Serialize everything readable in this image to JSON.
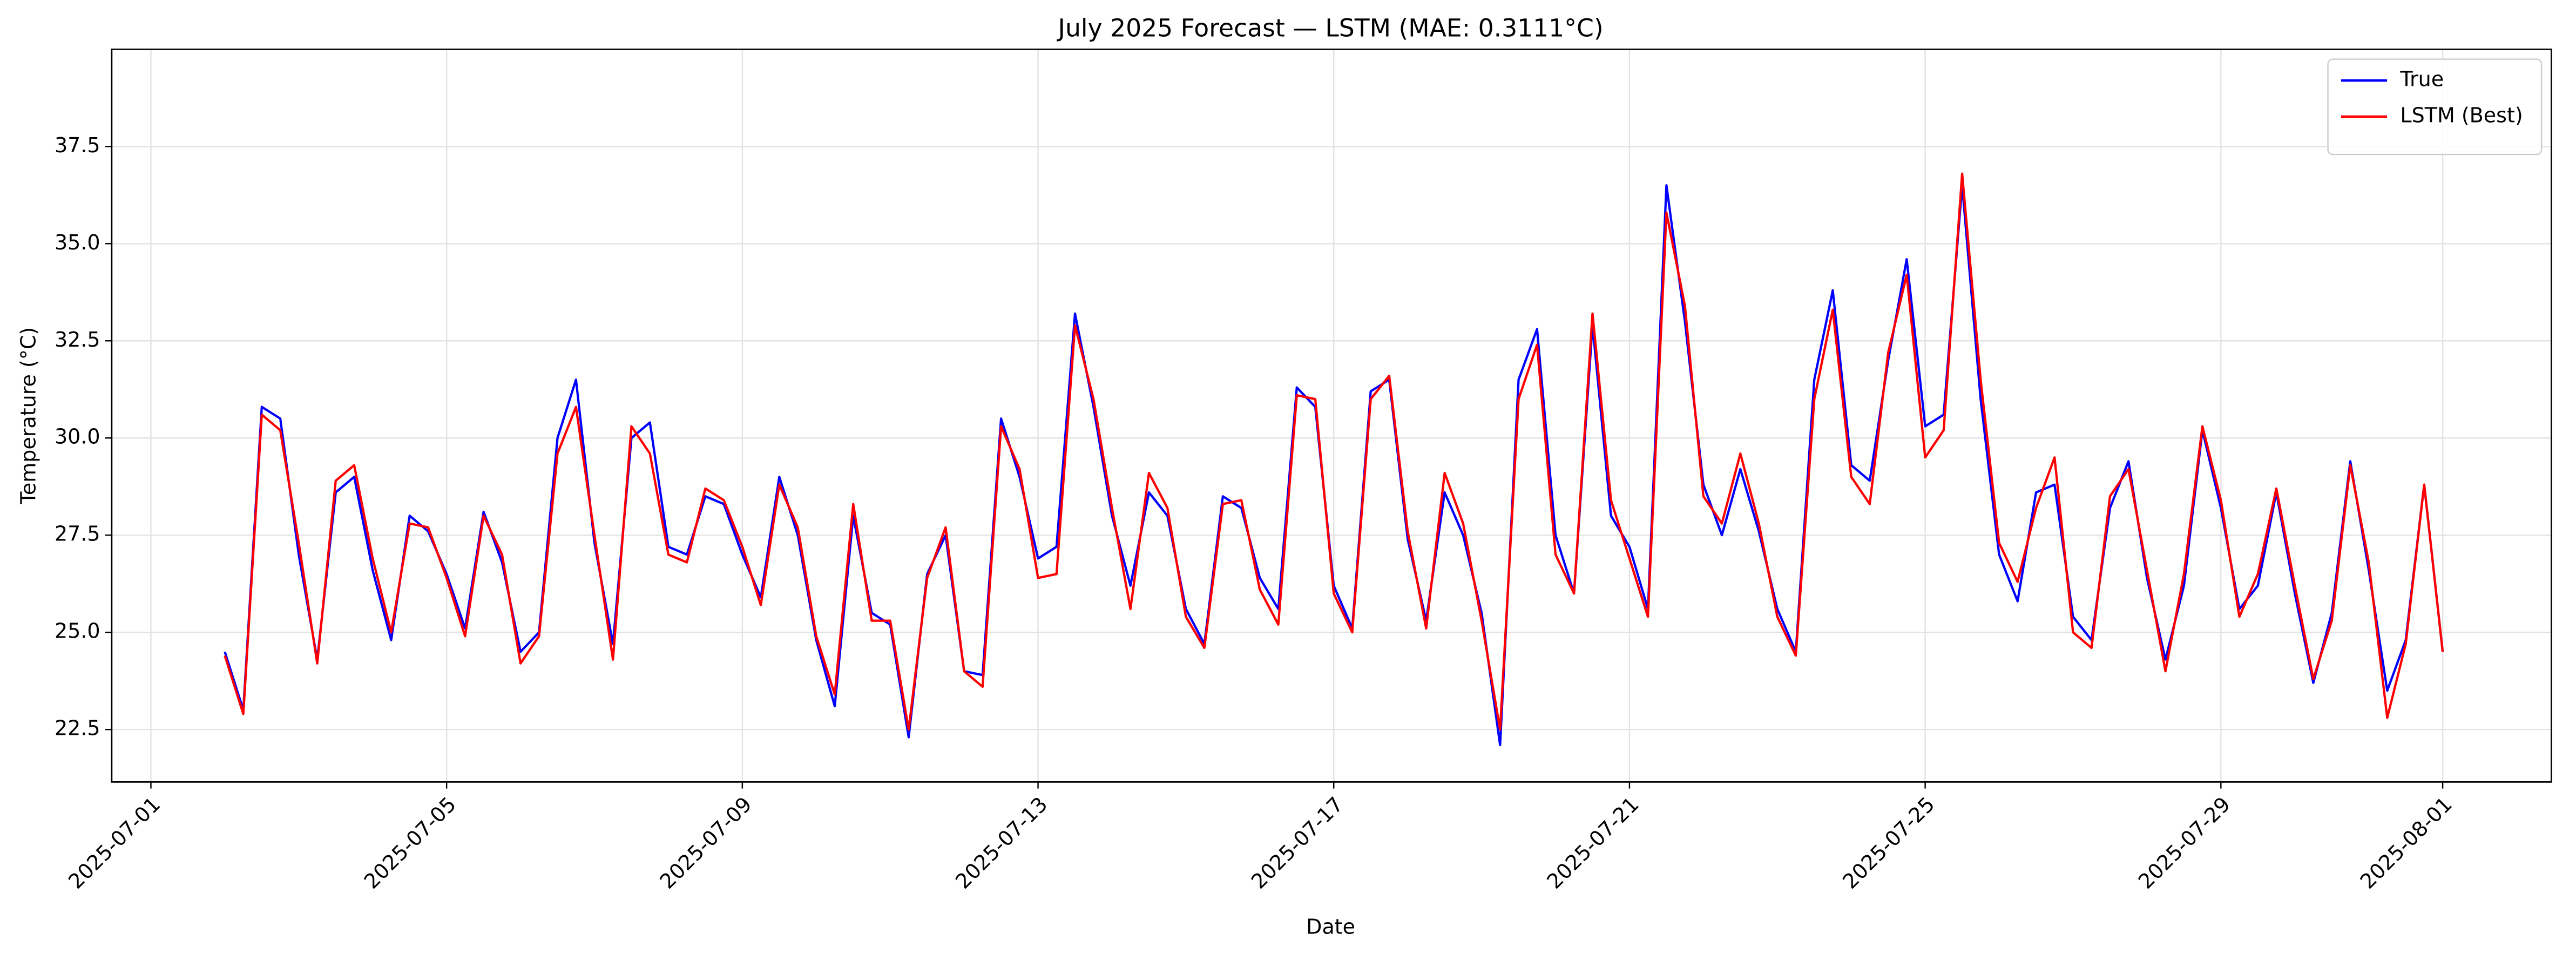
{
  "chart_data": {
    "type": "line",
    "title": "July 2025 Forecast — LSTM (MAE: 0.3111°C)",
    "x_label": "Date",
    "y_label": "Temperature (°C)",
    "x": [
      2,
      2.25,
      2.5,
      2.75,
      3,
      3.25,
      3.5,
      3.75,
      4,
      4.25,
      4.5,
      4.75,
      5,
      5.25,
      5.5,
      5.75,
      6,
      6.25,
      6.5,
      6.75,
      7,
      7.25,
      7.5,
      7.75,
      8,
      8.25,
      8.5,
      8.75,
      9,
      9.25,
      9.5,
      9.75,
      10,
      10.25,
      10.5,
      10.75,
      11,
      11.25,
      11.5,
      11.75,
      12,
      12.25,
      12.5,
      12.75,
      13,
      13.25,
      13.5,
      13.75,
      14,
      14.25,
      14.5,
      14.75,
      15,
      15.25,
      15.5,
      15.75,
      16,
      16.25,
      16.5,
      16.75,
      17,
      17.25,
      17.5,
      17.75,
      18,
      18.25,
      18.5,
      18.75,
      19,
      19.25,
      19.5,
      19.75,
      20,
      20.25,
      20.5,
      20.75,
      21,
      21.25,
      21.5,
      21.75,
      22,
      22.25,
      22.5,
      22.75,
      23,
      23.25,
      23.5,
      23.75,
      24,
      24.25,
      24.5,
      24.75,
      25,
      25.25,
      25.5,
      25.75,
      26,
      26.25,
      26.5,
      26.75,
      27,
      27.25,
      27.5,
      27.75,
      28,
      28.25,
      28.5,
      28.75,
      29,
      29.25,
      29.5,
      29.75,
      30,
      30.25,
      30.5,
      30.75,
      31,
      31.25,
      31.5,
      31.75,
      32
    ],
    "series": [
      {
        "name": "True",
        "color": "#0000ff",
        "values": [
          24.5,
          23.0,
          30.8,
          30.5,
          27.0,
          24.3,
          28.6,
          29.0,
          26.6,
          24.8,
          28.0,
          27.6,
          26.5,
          25.1,
          28.1,
          26.8,
          24.5,
          25.0,
          30.0,
          31.5,
          27.3,
          24.7,
          30.0,
          30.4,
          27.2,
          27.0,
          28.5,
          28.3,
          27.0,
          25.9,
          29.0,
          27.5,
          24.8,
          23.1,
          28.0,
          25.5,
          25.2,
          22.3,
          26.5,
          27.5,
          24.0,
          23.9,
          30.5,
          29.0,
          26.9,
          27.2,
          33.2,
          30.8,
          28.0,
          26.2,
          28.6,
          28.0,
          25.6,
          24.7,
          28.5,
          28.2,
          26.4,
          25.6,
          31.3,
          30.8,
          26.2,
          25.1,
          31.2,
          31.5,
          27.4,
          25.3,
          28.6,
          27.5,
          25.5,
          22.1,
          31.5,
          32.8,
          27.5,
          26.0,
          32.9,
          28.0,
          27.2,
          25.6,
          36.5,
          33.0,
          28.8,
          27.5,
          29.2,
          27.6,
          25.6,
          24.5,
          31.5,
          33.8,
          29.3,
          28.9,
          32.0,
          34.6,
          30.3,
          30.6,
          36.5,
          31.0,
          27.0,
          25.8,
          28.6,
          28.8,
          25.4,
          24.8,
          28.2,
          29.4,
          26.4,
          24.3,
          26.2,
          30.2,
          28.2,
          25.6,
          26.2,
          28.6,
          26.0,
          23.7,
          25.5,
          29.4,
          26.6,
          23.5,
          24.8,
          28.8,
          24.5
        ]
      },
      {
        "name": "LSTM (Best)",
        "color": "#ff0000",
        "values": [
          24.4,
          22.9,
          30.6,
          30.2,
          27.3,
          24.2,
          28.9,
          29.3,
          26.9,
          25.0,
          27.8,
          27.7,
          26.4,
          24.9,
          28.0,
          27.0,
          24.2,
          24.9,
          29.6,
          30.8,
          27.5,
          24.3,
          30.3,
          29.6,
          27.0,
          26.8,
          28.7,
          28.4,
          27.2,
          25.7,
          28.8,
          27.7,
          24.9,
          23.4,
          28.3,
          25.3,
          25.3,
          22.5,
          26.4,
          27.7,
          24.0,
          23.6,
          30.3,
          29.2,
          26.4,
          26.5,
          32.9,
          31.0,
          28.2,
          25.6,
          29.1,
          28.2,
          25.4,
          24.6,
          28.3,
          28.4,
          26.1,
          25.2,
          31.1,
          31.0,
          26.0,
          25.0,
          31.0,
          31.6,
          27.6,
          25.1,
          29.1,
          27.8,
          25.3,
          22.5,
          31.0,
          32.4,
          27.0,
          26.0,
          33.2,
          28.4,
          26.9,
          25.4,
          35.8,
          33.4,
          28.5,
          27.8,
          29.6,
          27.8,
          25.4,
          24.4,
          31.0,
          33.3,
          29.0,
          28.3,
          32.2,
          34.2,
          29.5,
          30.2,
          36.8,
          31.5,
          27.3,
          26.3,
          28.2,
          29.5,
          25.0,
          24.6,
          28.5,
          29.2,
          26.6,
          24.0,
          26.5,
          30.3,
          28.4,
          25.4,
          26.5,
          28.7,
          26.2,
          23.8,
          25.3,
          29.3,
          26.8,
          22.8,
          24.7,
          28.8,
          24.5
        ]
      }
    ],
    "xlim": [
      0.47,
      33.47
    ],
    "xticks": [
      {
        "value": 1,
        "label": "2025-07-01"
      },
      {
        "value": 5,
        "label": "2025-07-05"
      },
      {
        "value": 9,
        "label": "2025-07-09"
      },
      {
        "value": 13,
        "label": "2025-07-13"
      },
      {
        "value": 17,
        "label": "2025-07-17"
      },
      {
        "value": 21,
        "label": "2025-07-21"
      },
      {
        "value": 25,
        "label": "2025-07-25"
      },
      {
        "value": 29,
        "label": "2025-07-29"
      },
      {
        "value": 32,
        "label": "2025-08-01"
      }
    ],
    "ylim": [
      21.15,
      40.0
    ],
    "yticks": [
      22.5,
      {
        "value": 25,
        "label": "25.0"
      },
      27.5,
      {
        "value": 30,
        "label": "30.0"
      },
      32.5,
      {
        "value": 35,
        "label": "35.0"
      },
      37.5
    ],
    "grid": true,
    "legend": "upper right"
  }
}
